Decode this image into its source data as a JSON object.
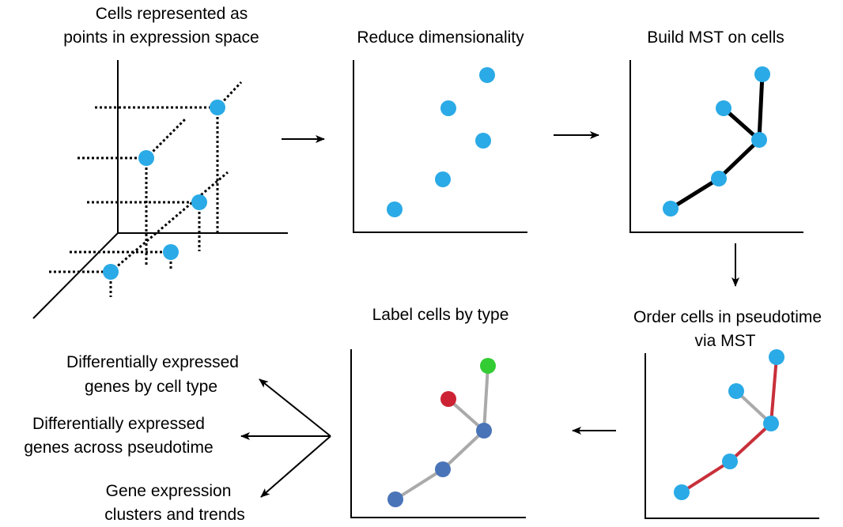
{
  "colors": {
    "cell": "#2aaae6",
    "edge_black": "#000000",
    "edge_gray": "#aaaaaa",
    "edge_red": "#c8303a",
    "type_blue": "#4a74b8",
    "type_red": "#cc2233",
    "type_green": "#33cc33"
  },
  "panels": {
    "expression_space": {
      "title_lines": [
        "Cells represented as",
        "points in expression space"
      ]
    },
    "reduce": {
      "title": "Reduce dimensionality"
    },
    "mst": {
      "title": "Build MST on cells"
    },
    "pseudotime": {
      "title_lines": [
        "Order cells in pseudotime",
        "via MST"
      ]
    },
    "label": {
      "title": "Label cells by type"
    }
  },
  "outputs": [
    {
      "lines": [
        "Differentially expressed",
        "genes by cell type"
      ]
    },
    {
      "lines": [
        "Differentially expressed",
        "genes across pseudotime"
      ]
    },
    {
      "lines": [
        "Gene expression",
        "clusters and trends"
      ]
    }
  ],
  "icons": {
    "flow_arrow": "arrow-right-icon",
    "down_arrow": "arrow-down-icon",
    "left_arrow": "arrow-left-icon",
    "fan_arrows": "arrow-fan-icon"
  }
}
